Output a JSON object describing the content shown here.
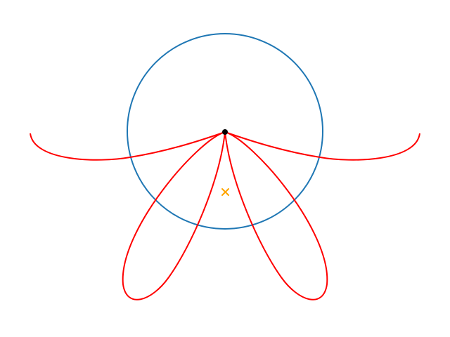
{
  "diagram": {
    "colors": {
      "background": "#ffffff",
      "circle": "#1f77b4",
      "curve": "#ff0000",
      "pivot_point": "#000000",
      "center_marker": "#ffa500"
    },
    "elements": [
      {
        "name": "reference-circle",
        "kind": "circle"
      },
      {
        "name": "left-arm-curve",
        "kind": "curve"
      },
      {
        "name": "right-arm-curve",
        "kind": "curve"
      },
      {
        "name": "left-petal-curve",
        "kind": "loop"
      },
      {
        "name": "right-petal-curve",
        "kind": "loop"
      },
      {
        "name": "pivot-point",
        "kind": "dot"
      },
      {
        "name": "center-x-marker",
        "kind": "x-marker"
      }
    ]
  }
}
